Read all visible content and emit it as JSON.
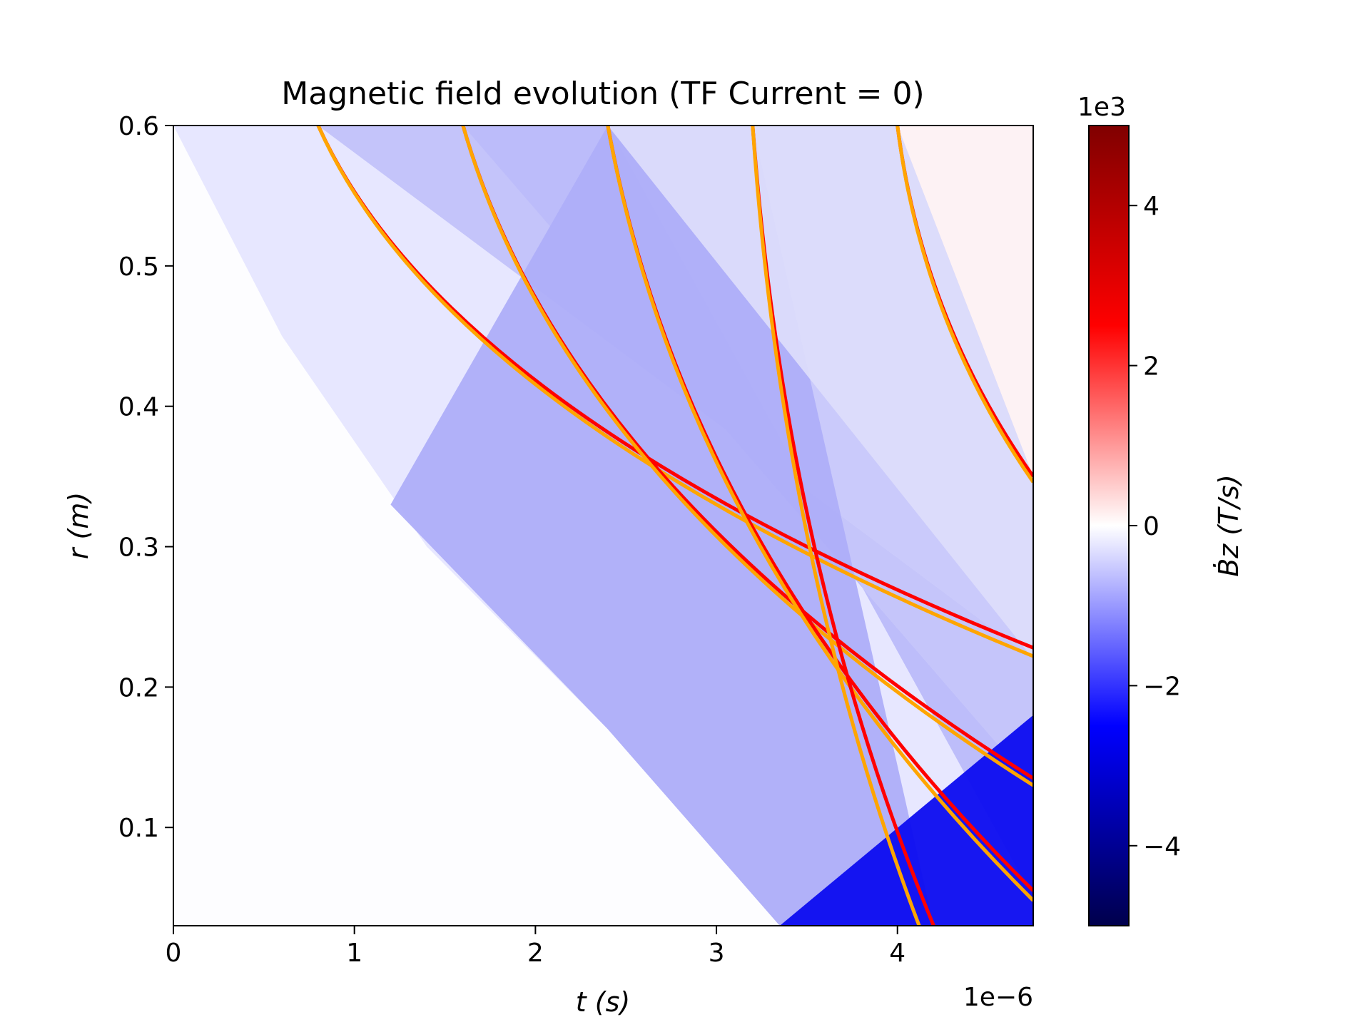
{
  "chart_data": {
    "type": "heatmap",
    "title": "Magnetic field evolution (TF Current = 0)",
    "xlabel": "t (s)",
    "ylabel": "r (m)",
    "x_offset_text": "1e−6",
    "xlim": [
      0,
      4.75
    ],
    "ylim": [
      0.03,
      0.6
    ],
    "x_ticks": [
      0,
      1,
      2,
      3,
      4
    ],
    "x_tick_labels": [
      "0",
      "1",
      "2",
      "3",
      "4"
    ],
    "y_ticks": [
      0.1,
      0.2,
      0.3,
      0.4,
      0.5,
      0.6
    ],
    "y_tick_labels": [
      "0.1",
      "0.2",
      "0.3",
      "0.4",
      "0.5",
      "0.6"
    ],
    "grid": false,
    "colormap": "seismic",
    "colorbar": {
      "label": "Ḃz (T/s)",
      "offset_text": "1e3",
      "range": [
        -5,
        5
      ],
      "ticks": [
        -4,
        -2,
        0,
        2,
        4
      ],
      "tick_labels": [
        "−4",
        "−2",
        "0",
        "2",
        "4"
      ]
    },
    "series": [
      {
        "name": "",
        "color": "#ff0000",
        "points": [
          [
            0.8,
            0.6
          ],
          [
            4.75,
            0.228
          ]
        ]
      },
      {
        "name": "",
        "color": "#ffa500",
        "points": [
          [
            0.8,
            0.6
          ],
          [
            4.75,
            0.222
          ]
        ]
      },
      {
        "name": "",
        "color": "#ff0000",
        "points": [
          [
            1.6,
            0.6
          ],
          [
            4.75,
            0.135
          ]
        ]
      },
      {
        "name": "",
        "color": "#ffa500",
        "points": [
          [
            1.6,
            0.6
          ],
          [
            4.75,
            0.13
          ]
        ]
      },
      {
        "name": "",
        "color": "#ff0000",
        "points": [
          [
            2.4,
            0.6
          ],
          [
            4.75,
            0.055
          ]
        ]
      },
      {
        "name": "",
        "color": "#ffa500",
        "points": [
          [
            2.4,
            0.6
          ],
          [
            4.75,
            0.048
          ]
        ]
      },
      {
        "name": "",
        "color": "#ff0000",
        "points": [
          [
            3.2,
            0.6
          ],
          [
            4.2,
            0.03
          ]
        ]
      },
      {
        "name": "",
        "color": "#ffa500",
        "points": [
          [
            3.2,
            0.6
          ],
          [
            4.12,
            0.03
          ]
        ]
      },
      {
        "name": "",
        "color": "#ff0000",
        "points": [
          [
            4.0,
            0.6
          ],
          [
            4.75,
            0.35
          ]
        ]
      },
      {
        "name": "",
        "color": "#ffa500",
        "points": [
          [
            4.0,
            0.6
          ],
          [
            4.75,
            0.346
          ]
        ]
      }
    ]
  }
}
